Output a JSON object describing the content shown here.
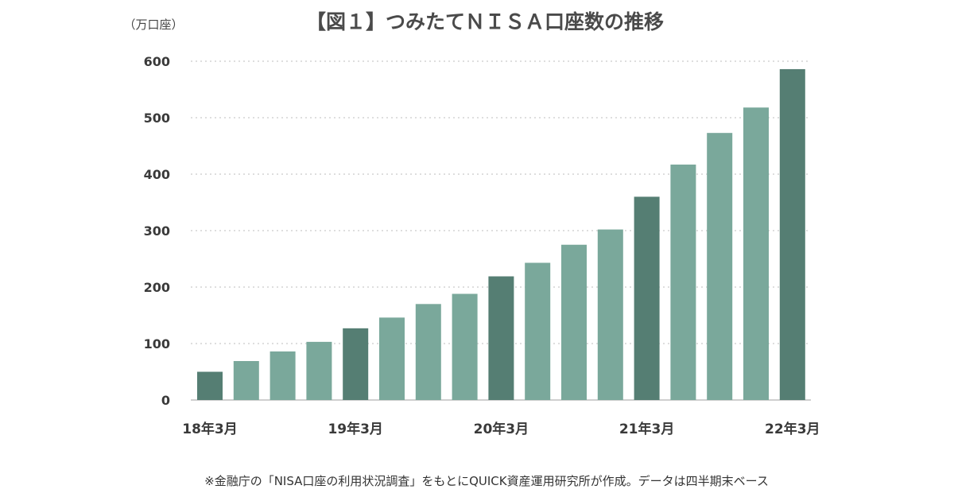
{
  "chart_data": {
    "type": "bar",
    "title": "【図１】つみたてＮＩＳＡ口座数の推移",
    "unit_label": "（万口座）",
    "ylim": [
      0,
      600
    ],
    "yticks": [
      0,
      100,
      200,
      300,
      400,
      500,
      600
    ],
    "grid": true,
    "x_tick_labels": [
      "18年3月",
      "19年3月",
      "20年3月",
      "21年3月",
      "22年3月"
    ],
    "x_tick_positions": [
      0,
      4,
      8,
      12,
      16
    ],
    "values": [
      50,
      69,
      86,
      103,
      127,
      146,
      170,
      188,
      219,
      243,
      275,
      302,
      360,
      417,
      473,
      518,
      586
    ],
    "colors": {
      "march_bar": "#557e73",
      "other_bar": "#7aa89b",
      "grid": "#d4d4d4"
    },
    "footnote": "※金融庁の「NISA口座の利用状況調査」をもとにQUICK資産運用研究所が作成。データは四半期末ベース"
  }
}
